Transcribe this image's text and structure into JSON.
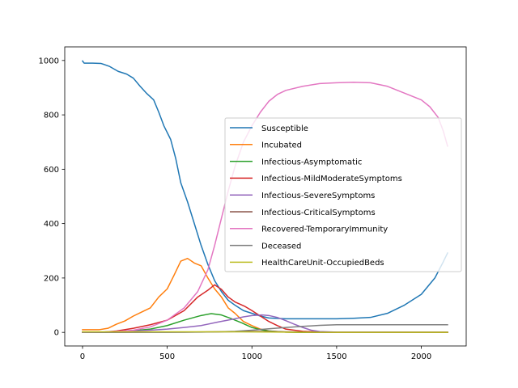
{
  "chart_data": {
    "type": "line",
    "title": "",
    "xlabel": "",
    "ylabel": "",
    "xlim": [
      -105,
      2265
    ],
    "ylim": [
      -50,
      1050
    ],
    "xticks": [
      0,
      500,
      1000,
      1500,
      2000
    ],
    "yticks": [
      0,
      200,
      400,
      600,
      800,
      1000
    ],
    "xtick_labels": [
      "0",
      "500",
      "1000",
      "1500",
      "2000"
    ],
    "ytick_labels": [
      "0",
      "200",
      "400",
      "600",
      "800",
      "1000"
    ],
    "grid": false,
    "legend_position": "center-right",
    "series": [
      {
        "name": "Susceptible",
        "color": "#1f77b4",
        "points": [
          [
            0,
            998
          ],
          [
            10,
            990
          ],
          [
            60,
            990
          ],
          [
            110,
            989
          ],
          [
            160,
            978
          ],
          [
            210,
            960
          ],
          [
            260,
            950
          ],
          [
            300,
            935
          ],
          [
            340,
            905
          ],
          [
            380,
            878
          ],
          [
            420,
            855
          ],
          [
            450,
            810
          ],
          [
            480,
            760
          ],
          [
            520,
            710
          ],
          [
            550,
            640
          ],
          [
            580,
            550
          ],
          [
            620,
            480
          ],
          [
            660,
            400
          ],
          [
            700,
            320
          ],
          [
            740,
            250
          ],
          [
            780,
            190
          ],
          [
            820,
            150
          ],
          [
            860,
            118
          ],
          [
            900,
            100
          ],
          [
            950,
            80
          ],
          [
            1000,
            70
          ],
          [
            1050,
            60
          ],
          [
            1100,
            53
          ],
          [
            1200,
            50
          ],
          [
            1300,
            50
          ],
          [
            1500,
            50
          ],
          [
            1600,
            52
          ],
          [
            1700,
            55
          ],
          [
            1800,
            70
          ],
          [
            1900,
            100
          ],
          [
            2000,
            140
          ],
          [
            2080,
            200
          ],
          [
            2130,
            260
          ],
          [
            2155,
            292
          ]
        ]
      },
      {
        "name": "Incubated",
        "color": "#ff7f0e",
        "points": [
          [
            0,
            10
          ],
          [
            50,
            10
          ],
          [
            100,
            10
          ],
          [
            150,
            15
          ],
          [
            200,
            30
          ],
          [
            250,
            42
          ],
          [
            300,
            60
          ],
          [
            350,
            75
          ],
          [
            400,
            90
          ],
          [
            450,
            130
          ],
          [
            500,
            160
          ],
          [
            540,
            210
          ],
          [
            580,
            262
          ],
          [
            620,
            272
          ],
          [
            660,
            255
          ],
          [
            700,
            245
          ],
          [
            740,
            200
          ],
          [
            780,
            160
          ],
          [
            820,
            130
          ],
          [
            860,
            90
          ],
          [
            900,
            70
          ],
          [
            950,
            40
          ],
          [
            1000,
            25
          ],
          [
            1050,
            12
          ],
          [
            1100,
            5
          ],
          [
            1200,
            1
          ],
          [
            1300,
            0
          ],
          [
            1600,
            0
          ],
          [
            2000,
            0
          ],
          [
            2155,
            0
          ]
        ]
      },
      {
        "name": "Infectious-Asymptomatic",
        "color": "#2ca02c",
        "points": [
          [
            0,
            0
          ],
          [
            100,
            0
          ],
          [
            200,
            2
          ],
          [
            300,
            6
          ],
          [
            400,
            12
          ],
          [
            500,
            25
          ],
          [
            600,
            45
          ],
          [
            700,
            62
          ],
          [
            760,
            69
          ],
          [
            820,
            64
          ],
          [
            880,
            50
          ],
          [
            940,
            35
          ],
          [
            1000,
            18
          ],
          [
            1050,
            10
          ],
          [
            1100,
            5
          ],
          [
            1200,
            1
          ],
          [
            1300,
            0
          ],
          [
            2155,
            0
          ]
        ]
      },
      {
        "name": "Infectious-MildModerateSymptoms",
        "color": "#d62728",
        "points": [
          [
            0,
            0
          ],
          [
            100,
            0
          ],
          [
            200,
            5
          ],
          [
            300,
            15
          ],
          [
            400,
            28
          ],
          [
            500,
            45
          ],
          [
            600,
            80
          ],
          [
            680,
            130
          ],
          [
            740,
            155
          ],
          [
            780,
            175
          ],
          [
            820,
            158
          ],
          [
            860,
            130
          ],
          [
            900,
            112
          ],
          [
            960,
            95
          ],
          [
            1000,
            80
          ],
          [
            1050,
            60
          ],
          [
            1100,
            40
          ],
          [
            1150,
            25
          ],
          [
            1200,
            12
          ],
          [
            1300,
            4
          ],
          [
            1400,
            1
          ],
          [
            1500,
            0
          ],
          [
            2155,
            0
          ]
        ]
      },
      {
        "name": "Infectious-SevereSymptoms",
        "color": "#9467bd",
        "points": [
          [
            0,
            0
          ],
          [
            100,
            0
          ],
          [
            200,
            2
          ],
          [
            300,
            5
          ],
          [
            400,
            8
          ],
          [
            500,
            12
          ],
          [
            600,
            18
          ],
          [
            700,
            25
          ],
          [
            800,
            38
          ],
          [
            900,
            50
          ],
          [
            950,
            57
          ],
          [
            1000,
            62
          ],
          [
            1060,
            64
          ],
          [
            1100,
            62
          ],
          [
            1150,
            55
          ],
          [
            1200,
            43
          ],
          [
            1250,
            30
          ],
          [
            1300,
            18
          ],
          [
            1350,
            8
          ],
          [
            1400,
            3
          ],
          [
            1500,
            1
          ],
          [
            2155,
            0
          ]
        ]
      },
      {
        "name": "Infectious-CriticalSymptoms",
        "color": "#8c564b",
        "points": [
          [
            0,
            0
          ],
          [
            200,
            0
          ],
          [
            400,
            1
          ],
          [
            600,
            1
          ],
          [
            800,
            2
          ],
          [
            1000,
            3
          ],
          [
            1100,
            3
          ],
          [
            1200,
            2
          ],
          [
            1300,
            1
          ],
          [
            1400,
            0
          ],
          [
            2155,
            0
          ]
        ]
      },
      {
        "name": "Recovered-TemporaryImmunity",
        "color": "#e377c2",
        "points": [
          [
            0,
            0
          ],
          [
            100,
            1
          ],
          [
            200,
            3
          ],
          [
            300,
            8
          ],
          [
            400,
            20
          ],
          [
            500,
            45
          ],
          [
            600,
            90
          ],
          [
            680,
            150
          ],
          [
            740,
            230
          ],
          [
            780,
            320
          ],
          [
            820,
            420
          ],
          [
            860,
            520
          ],
          [
            900,
            610
          ],
          [
            950,
            700
          ],
          [
            1000,
            760
          ],
          [
            1050,
            810
          ],
          [
            1100,
            850
          ],
          [
            1150,
            875
          ],
          [
            1200,
            890
          ],
          [
            1300,
            905
          ],
          [
            1400,
            915
          ],
          [
            1500,
            918
          ],
          [
            1600,
            920
          ],
          [
            1700,
            918
          ],
          [
            1800,
            905
          ],
          [
            1900,
            880
          ],
          [
            2000,
            855
          ],
          [
            2050,
            830
          ],
          [
            2100,
            790
          ],
          [
            2130,
            740
          ],
          [
            2155,
            685
          ]
        ]
      },
      {
        "name": "Deceased",
        "color": "#7f7f7f",
        "points": [
          [
            0,
            0
          ],
          [
            500,
            0
          ],
          [
            700,
            1
          ],
          [
            800,
            2
          ],
          [
            900,
            4
          ],
          [
            1000,
            8
          ],
          [
            1100,
            13
          ],
          [
            1200,
            18
          ],
          [
            1300,
            22
          ],
          [
            1400,
            26
          ],
          [
            1500,
            28
          ],
          [
            1600,
            28
          ],
          [
            2000,
            28
          ],
          [
            2155,
            28
          ]
        ]
      },
      {
        "name": "HealthCareUnit-OccupiedBeds",
        "color": "#bcbd22",
        "points": [
          [
            0,
            2
          ],
          [
            300,
            2
          ],
          [
            600,
            2
          ],
          [
            900,
            2
          ],
          [
            1200,
            1
          ],
          [
            1500,
            0
          ],
          [
            2155,
            0
          ]
        ]
      }
    ]
  }
}
